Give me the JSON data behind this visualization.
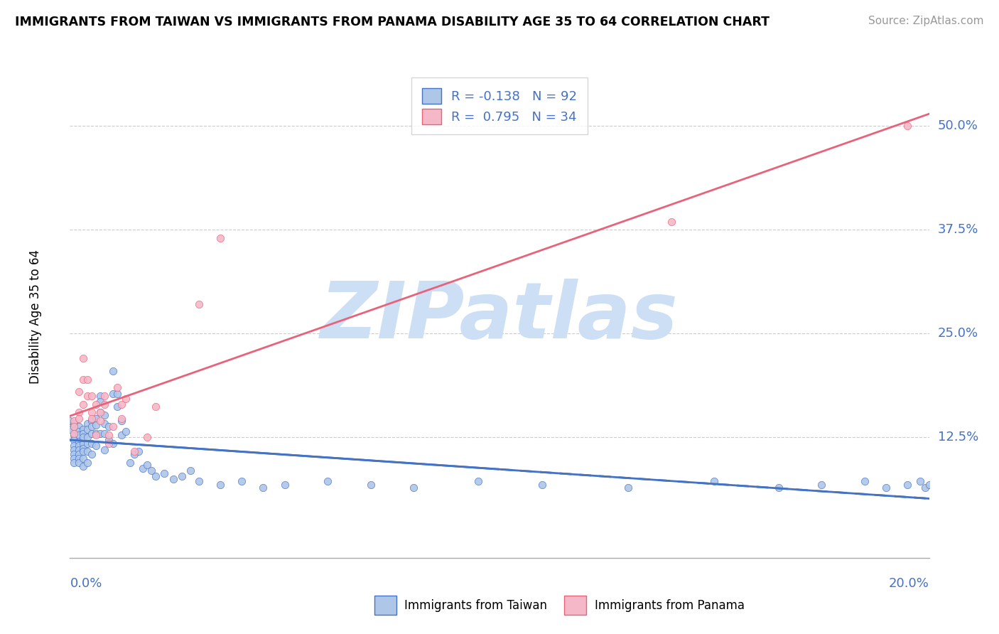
{
  "title": "IMMIGRANTS FROM TAIWAN VS IMMIGRANTS FROM PANAMA DISABILITY AGE 35 TO 64 CORRELATION CHART",
  "source": "Source: ZipAtlas.com",
  "ylabel": "Disability Age 35 to 64",
  "yticks": [
    "12.5%",
    "25.0%",
    "37.5%",
    "50.0%"
  ],
  "ytick_vals": [
    0.125,
    0.25,
    0.375,
    0.5
  ],
  "xlim": [
    0.0,
    0.2
  ],
  "ylim": [
    -0.02,
    0.56
  ],
  "legend": [
    {
      "label": "Immigrants from Taiwan",
      "R": -0.138,
      "N": 92,
      "color": "#aec6e8",
      "line_color": "#4472c4"
    },
    {
      "label": "Immigrants from Panama",
      "R": 0.795,
      "N": 34,
      "color": "#f4b8c8",
      "line_color": "#e8637a"
    }
  ],
  "watermark": "ZIPatlas",
  "watermark_color": "#cddff5",
  "background_color": "#ffffff",
  "taiwan_x": [
    0.0,
    0.0,
    0.001,
    0.001,
    0.001,
    0.001,
    0.001,
    0.001,
    0.001,
    0.001,
    0.001,
    0.002,
    0.002,
    0.002,
    0.002,
    0.002,
    0.002,
    0.002,
    0.002,
    0.002,
    0.003,
    0.003,
    0.003,
    0.003,
    0.003,
    0.003,
    0.003,
    0.003,
    0.004,
    0.004,
    0.004,
    0.004,
    0.004,
    0.004,
    0.005,
    0.005,
    0.005,
    0.005,
    0.005,
    0.006,
    0.006,
    0.006,
    0.006,
    0.007,
    0.007,
    0.007,
    0.007,
    0.008,
    0.008,
    0.008,
    0.008,
    0.009,
    0.009,
    0.01,
    0.01,
    0.01,
    0.011,
    0.011,
    0.012,
    0.012,
    0.013,
    0.014,
    0.015,
    0.016,
    0.017,
    0.018,
    0.019,
    0.02,
    0.022,
    0.024,
    0.026,
    0.028,
    0.03,
    0.035,
    0.04,
    0.045,
    0.05,
    0.06,
    0.07,
    0.08,
    0.095,
    0.11,
    0.13,
    0.15,
    0.165,
    0.175,
    0.185,
    0.19,
    0.195,
    0.198,
    0.199,
    0.2
  ],
  "taiwan_y": [
    0.135,
    0.145,
    0.138,
    0.142,
    0.128,
    0.122,
    0.115,
    0.11,
    0.105,
    0.1,
    0.095,
    0.138,
    0.132,
    0.128,
    0.12,
    0.115,
    0.11,
    0.105,
    0.1,
    0.095,
    0.135,
    0.13,
    0.125,
    0.118,
    0.112,
    0.108,
    0.1,
    0.09,
    0.142,
    0.135,
    0.125,
    0.118,
    0.108,
    0.095,
    0.145,
    0.138,
    0.13,
    0.118,
    0.105,
    0.148,
    0.14,
    0.13,
    0.115,
    0.175,
    0.168,
    0.155,
    0.13,
    0.152,
    0.142,
    0.13,
    0.11,
    0.138,
    0.122,
    0.205,
    0.178,
    0.118,
    0.178,
    0.162,
    0.145,
    0.128,
    0.132,
    0.095,
    0.105,
    0.108,
    0.088,
    0.092,
    0.085,
    0.078,
    0.082,
    0.075,
    0.078,
    0.085,
    0.072,
    0.068,
    0.072,
    0.065,
    0.068,
    0.072,
    0.068,
    0.065,
    0.072,
    0.068,
    0.065,
    0.072,
    0.065,
    0.068,
    0.072,
    0.065,
    0.068,
    0.072,
    0.065,
    0.068
  ],
  "panama_x": [
    0.001,
    0.001,
    0.001,
    0.002,
    0.002,
    0.002,
    0.003,
    0.003,
    0.003,
    0.004,
    0.004,
    0.005,
    0.005,
    0.005,
    0.006,
    0.006,
    0.007,
    0.007,
    0.008,
    0.008,
    0.009,
    0.009,
    0.01,
    0.011,
    0.012,
    0.012,
    0.013,
    0.015,
    0.018,
    0.02,
    0.03,
    0.035,
    0.14,
    0.195
  ],
  "panama_y": [
    0.145,
    0.138,
    0.13,
    0.155,
    0.148,
    0.18,
    0.22,
    0.195,
    0.165,
    0.195,
    0.175,
    0.155,
    0.148,
    0.175,
    0.128,
    0.165,
    0.155,
    0.145,
    0.175,
    0.165,
    0.128,
    0.118,
    0.138,
    0.185,
    0.148,
    0.165,
    0.172,
    0.108,
    0.125,
    0.162,
    0.285,
    0.365,
    0.385,
    0.5
  ]
}
